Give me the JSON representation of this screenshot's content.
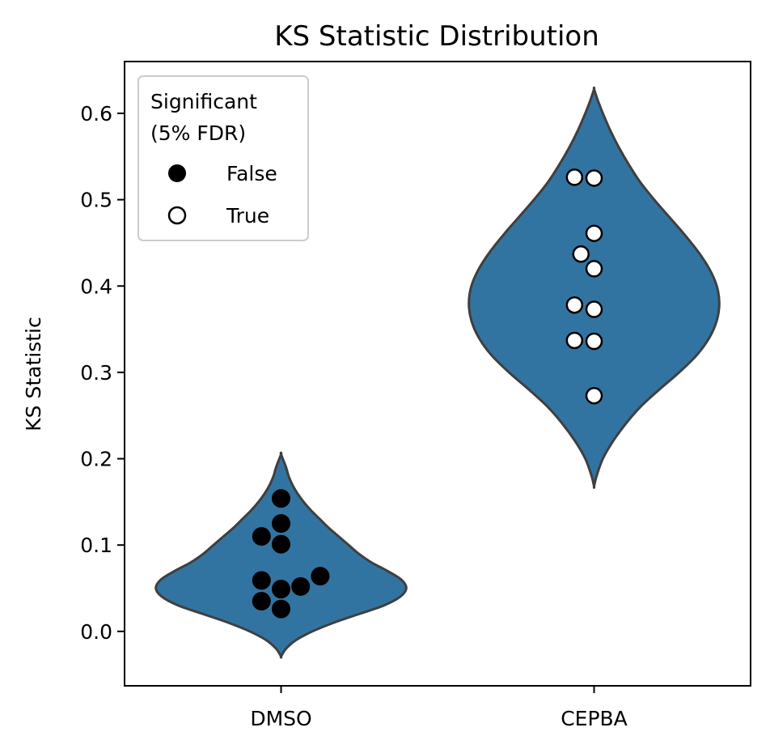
{
  "chart_data": {
    "type": "violin",
    "title": "KS Statistic Distribution",
    "xlabel": "",
    "ylabel": "KS Statistic",
    "categories": [
      "DMSO",
      "CEPBA"
    ],
    "ylim": [
      -0.063,
      0.66
    ],
    "yticks": [
      0.0,
      0.1,
      0.2,
      0.3,
      0.4,
      0.5,
      0.6
    ],
    "ytick_labels": [
      "0.0",
      "0.1",
      "0.2",
      "0.3",
      "0.4",
      "0.5",
      "0.6"
    ],
    "violin_color": "#3274a1",
    "violin_edge_color": "#3f3f3f",
    "grid": false,
    "violins": [
      {
        "category": "DMSO",
        "profile": [
          [
            -0.029,
            0.0
          ],
          [
            -0.02,
            0.04
          ],
          [
            -0.01,
            0.12
          ],
          [
            0.0,
            0.25
          ],
          [
            0.01,
            0.42
          ],
          [
            0.02,
            0.62
          ],
          [
            0.03,
            0.82
          ],
          [
            0.04,
            0.95
          ],
          [
            0.05,
            1.0
          ],
          [
            0.06,
            0.96
          ],
          [
            0.07,
            0.85
          ],
          [
            0.08,
            0.72
          ],
          [
            0.09,
            0.62
          ],
          [
            0.1,
            0.54
          ],
          [
            0.11,
            0.46
          ],
          [
            0.12,
            0.38
          ],
          [
            0.13,
            0.31
          ],
          [
            0.14,
            0.24
          ],
          [
            0.15,
            0.18
          ],
          [
            0.16,
            0.13
          ],
          [
            0.17,
            0.09
          ],
          [
            0.18,
            0.06
          ],
          [
            0.19,
            0.04
          ],
          [
            0.205,
            0.0
          ]
        ]
      },
      {
        "category": "CEPBA",
        "profile": [
          [
            0.168,
            0.0
          ],
          [
            0.18,
            0.02
          ],
          [
            0.2,
            0.07
          ],
          [
            0.22,
            0.15
          ],
          [
            0.24,
            0.25
          ],
          [
            0.26,
            0.37
          ],
          [
            0.28,
            0.52
          ],
          [
            0.3,
            0.68
          ],
          [
            0.32,
            0.82
          ],
          [
            0.34,
            0.92
          ],
          [
            0.36,
            0.98
          ],
          [
            0.38,
            1.0
          ],
          [
            0.4,
            0.98
          ],
          [
            0.42,
            0.92
          ],
          [
            0.44,
            0.83
          ],
          [
            0.46,
            0.72
          ],
          [
            0.48,
            0.6
          ],
          [
            0.5,
            0.48
          ],
          [
            0.52,
            0.37
          ],
          [
            0.54,
            0.28
          ],
          [
            0.56,
            0.2
          ],
          [
            0.58,
            0.13
          ],
          [
            0.6,
            0.07
          ],
          [
            0.615,
            0.03
          ],
          [
            0.628,
            0.0
          ]
        ]
      }
    ],
    "points": [
      {
        "category": "DMSO",
        "value": 0.154,
        "offset": 0.0,
        "significant": false
      },
      {
        "category": "DMSO",
        "value": 0.125,
        "offset": 0.0,
        "significant": false
      },
      {
        "category": "DMSO",
        "value": 0.11,
        "offset": -0.0625,
        "significant": false
      },
      {
        "category": "DMSO",
        "value": 0.101,
        "offset": 0.0,
        "significant": false
      },
      {
        "category": "DMSO",
        "value": 0.064,
        "offset": 0.125,
        "significant": false
      },
      {
        "category": "DMSO",
        "value": 0.059,
        "offset": -0.0625,
        "significant": false
      },
      {
        "category": "DMSO",
        "value": 0.052,
        "offset": 0.0625,
        "significant": false
      },
      {
        "category": "DMSO",
        "value": 0.049,
        "offset": 0.0,
        "significant": false
      },
      {
        "category": "DMSO",
        "value": 0.035,
        "offset": -0.0625,
        "significant": false
      },
      {
        "category": "DMSO",
        "value": 0.026,
        "offset": 0.0,
        "significant": false
      },
      {
        "category": "CEPBA",
        "value": 0.526,
        "offset": -0.0625,
        "significant": true
      },
      {
        "category": "CEPBA",
        "value": 0.525,
        "offset": 0.0,
        "significant": true
      },
      {
        "category": "CEPBA",
        "value": 0.461,
        "offset": 0.0,
        "significant": true
      },
      {
        "category": "CEPBA",
        "value": 0.437,
        "offset": -0.042,
        "significant": true
      },
      {
        "category": "CEPBA",
        "value": 0.42,
        "offset": 0.0,
        "significant": true
      },
      {
        "category": "CEPBA",
        "value": 0.378,
        "offset": -0.0625,
        "significant": true
      },
      {
        "category": "CEPBA",
        "value": 0.373,
        "offset": 0.0,
        "significant": true
      },
      {
        "category": "CEPBA",
        "value": 0.337,
        "offset": -0.0625,
        "significant": true
      },
      {
        "category": "CEPBA",
        "value": 0.336,
        "offset": 0.0,
        "significant": true
      },
      {
        "category": "CEPBA",
        "value": 0.273,
        "offset": 0.0,
        "significant": true
      }
    ],
    "legend": {
      "title_lines": [
        "Significant",
        "(5% FDR)"
      ],
      "placement": "top-left",
      "entries": [
        {
          "label": "False",
          "fill": "#000000",
          "edge": "#000000"
        },
        {
          "label": "True",
          "fill": "#ffffff",
          "edge": "#000000"
        }
      ]
    }
  }
}
